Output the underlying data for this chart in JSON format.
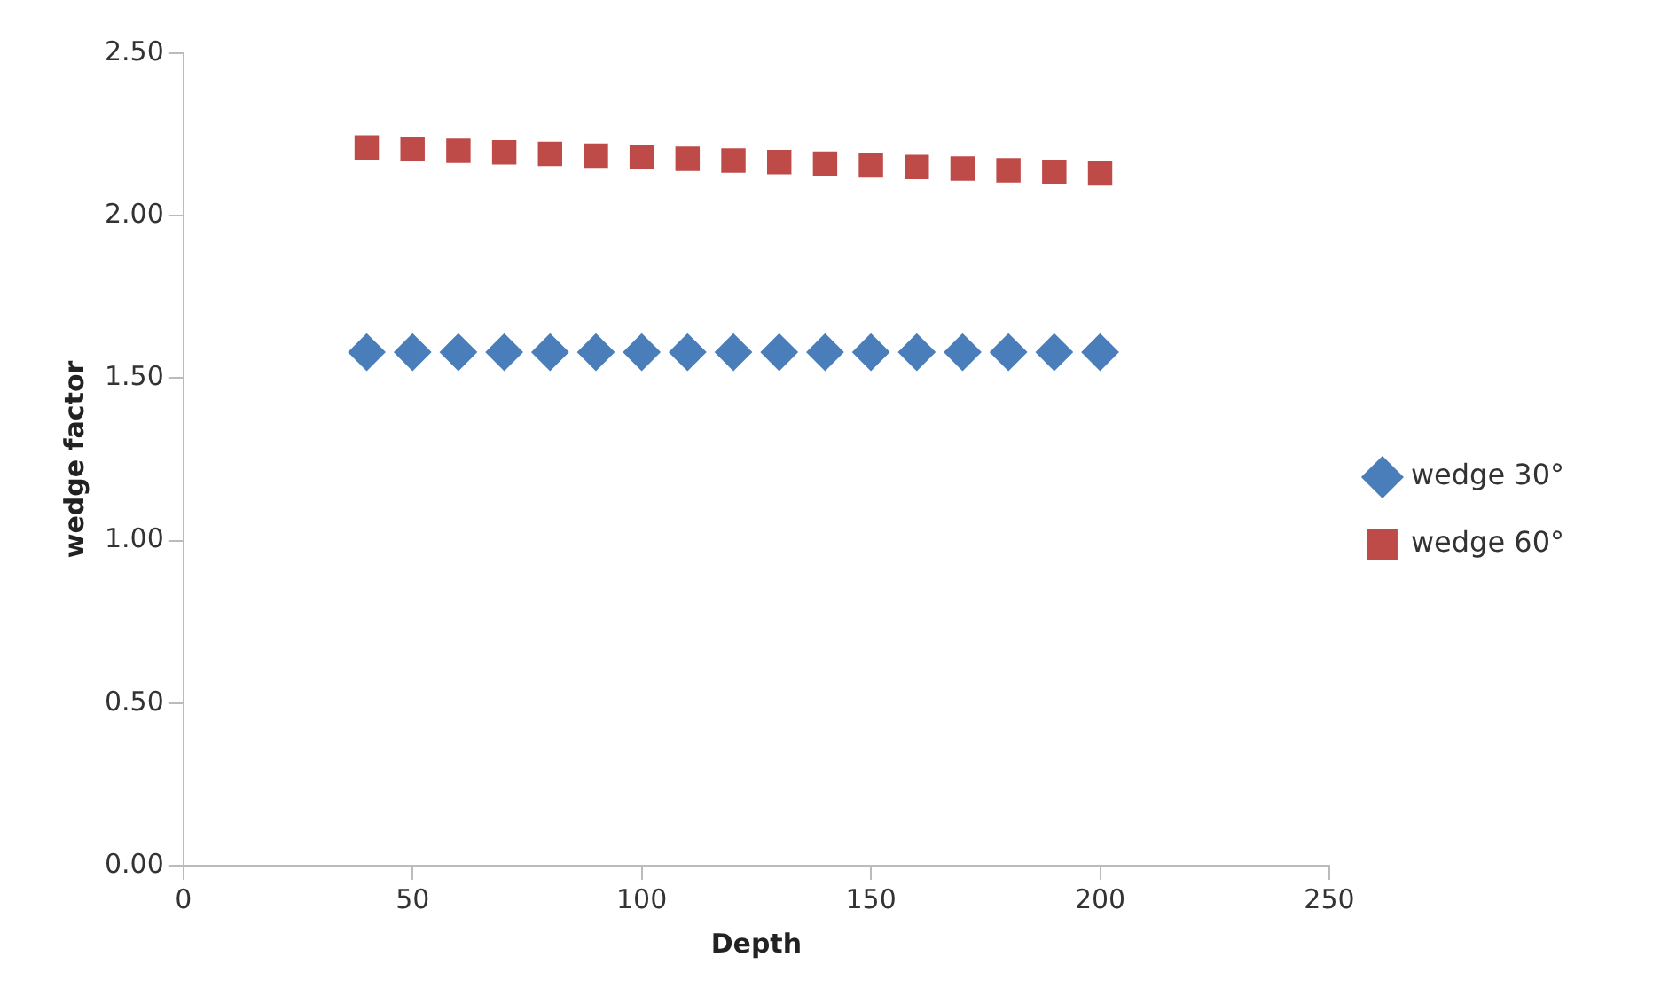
{
  "chart_data": {
    "type": "scatter",
    "xlabel": "Depth",
    "ylabel": "wedge factor",
    "x": [
      40,
      50,
      60,
      70,
      80,
      90,
      100,
      110,
      120,
      130,
      140,
      150,
      160,
      170,
      180,
      190,
      200
    ],
    "series": [
      {
        "name": "wedge 30°",
        "color": "#4a7ebb",
        "marker": "diamond",
        "values": [
          1.58,
          1.58,
          1.58,
          1.58,
          1.58,
          1.58,
          1.58,
          1.58,
          1.58,
          1.58,
          1.58,
          1.58,
          1.58,
          1.58,
          1.58,
          1.58,
          1.58
        ]
      },
      {
        "name": "wedge 60°",
        "color": "#be4b48",
        "marker": "square",
        "values": [
          2.21,
          2.205,
          2.2,
          2.195,
          2.19,
          2.185,
          2.18,
          2.175,
          2.17,
          2.165,
          2.16,
          2.155,
          2.15,
          2.145,
          2.14,
          2.135,
          2.13
        ]
      }
    ],
    "xlim": [
      0,
      250
    ],
    "xticks": [
      0,
      50,
      100,
      150,
      200,
      250
    ],
    "ylim": [
      0,
      2.5
    ],
    "yticks": [
      {
        "value": 0,
        "label": "0.00"
      },
      {
        "value": 0.5,
        "label": "0.50"
      },
      {
        "value": 1,
        "label": "1.00"
      },
      {
        "value": 1.5,
        "label": "1.50"
      },
      {
        "value": 2,
        "label": "2.00"
      },
      {
        "value": 2.5,
        "label": "2.50"
      }
    ],
    "grid": false,
    "legend": "right"
  }
}
